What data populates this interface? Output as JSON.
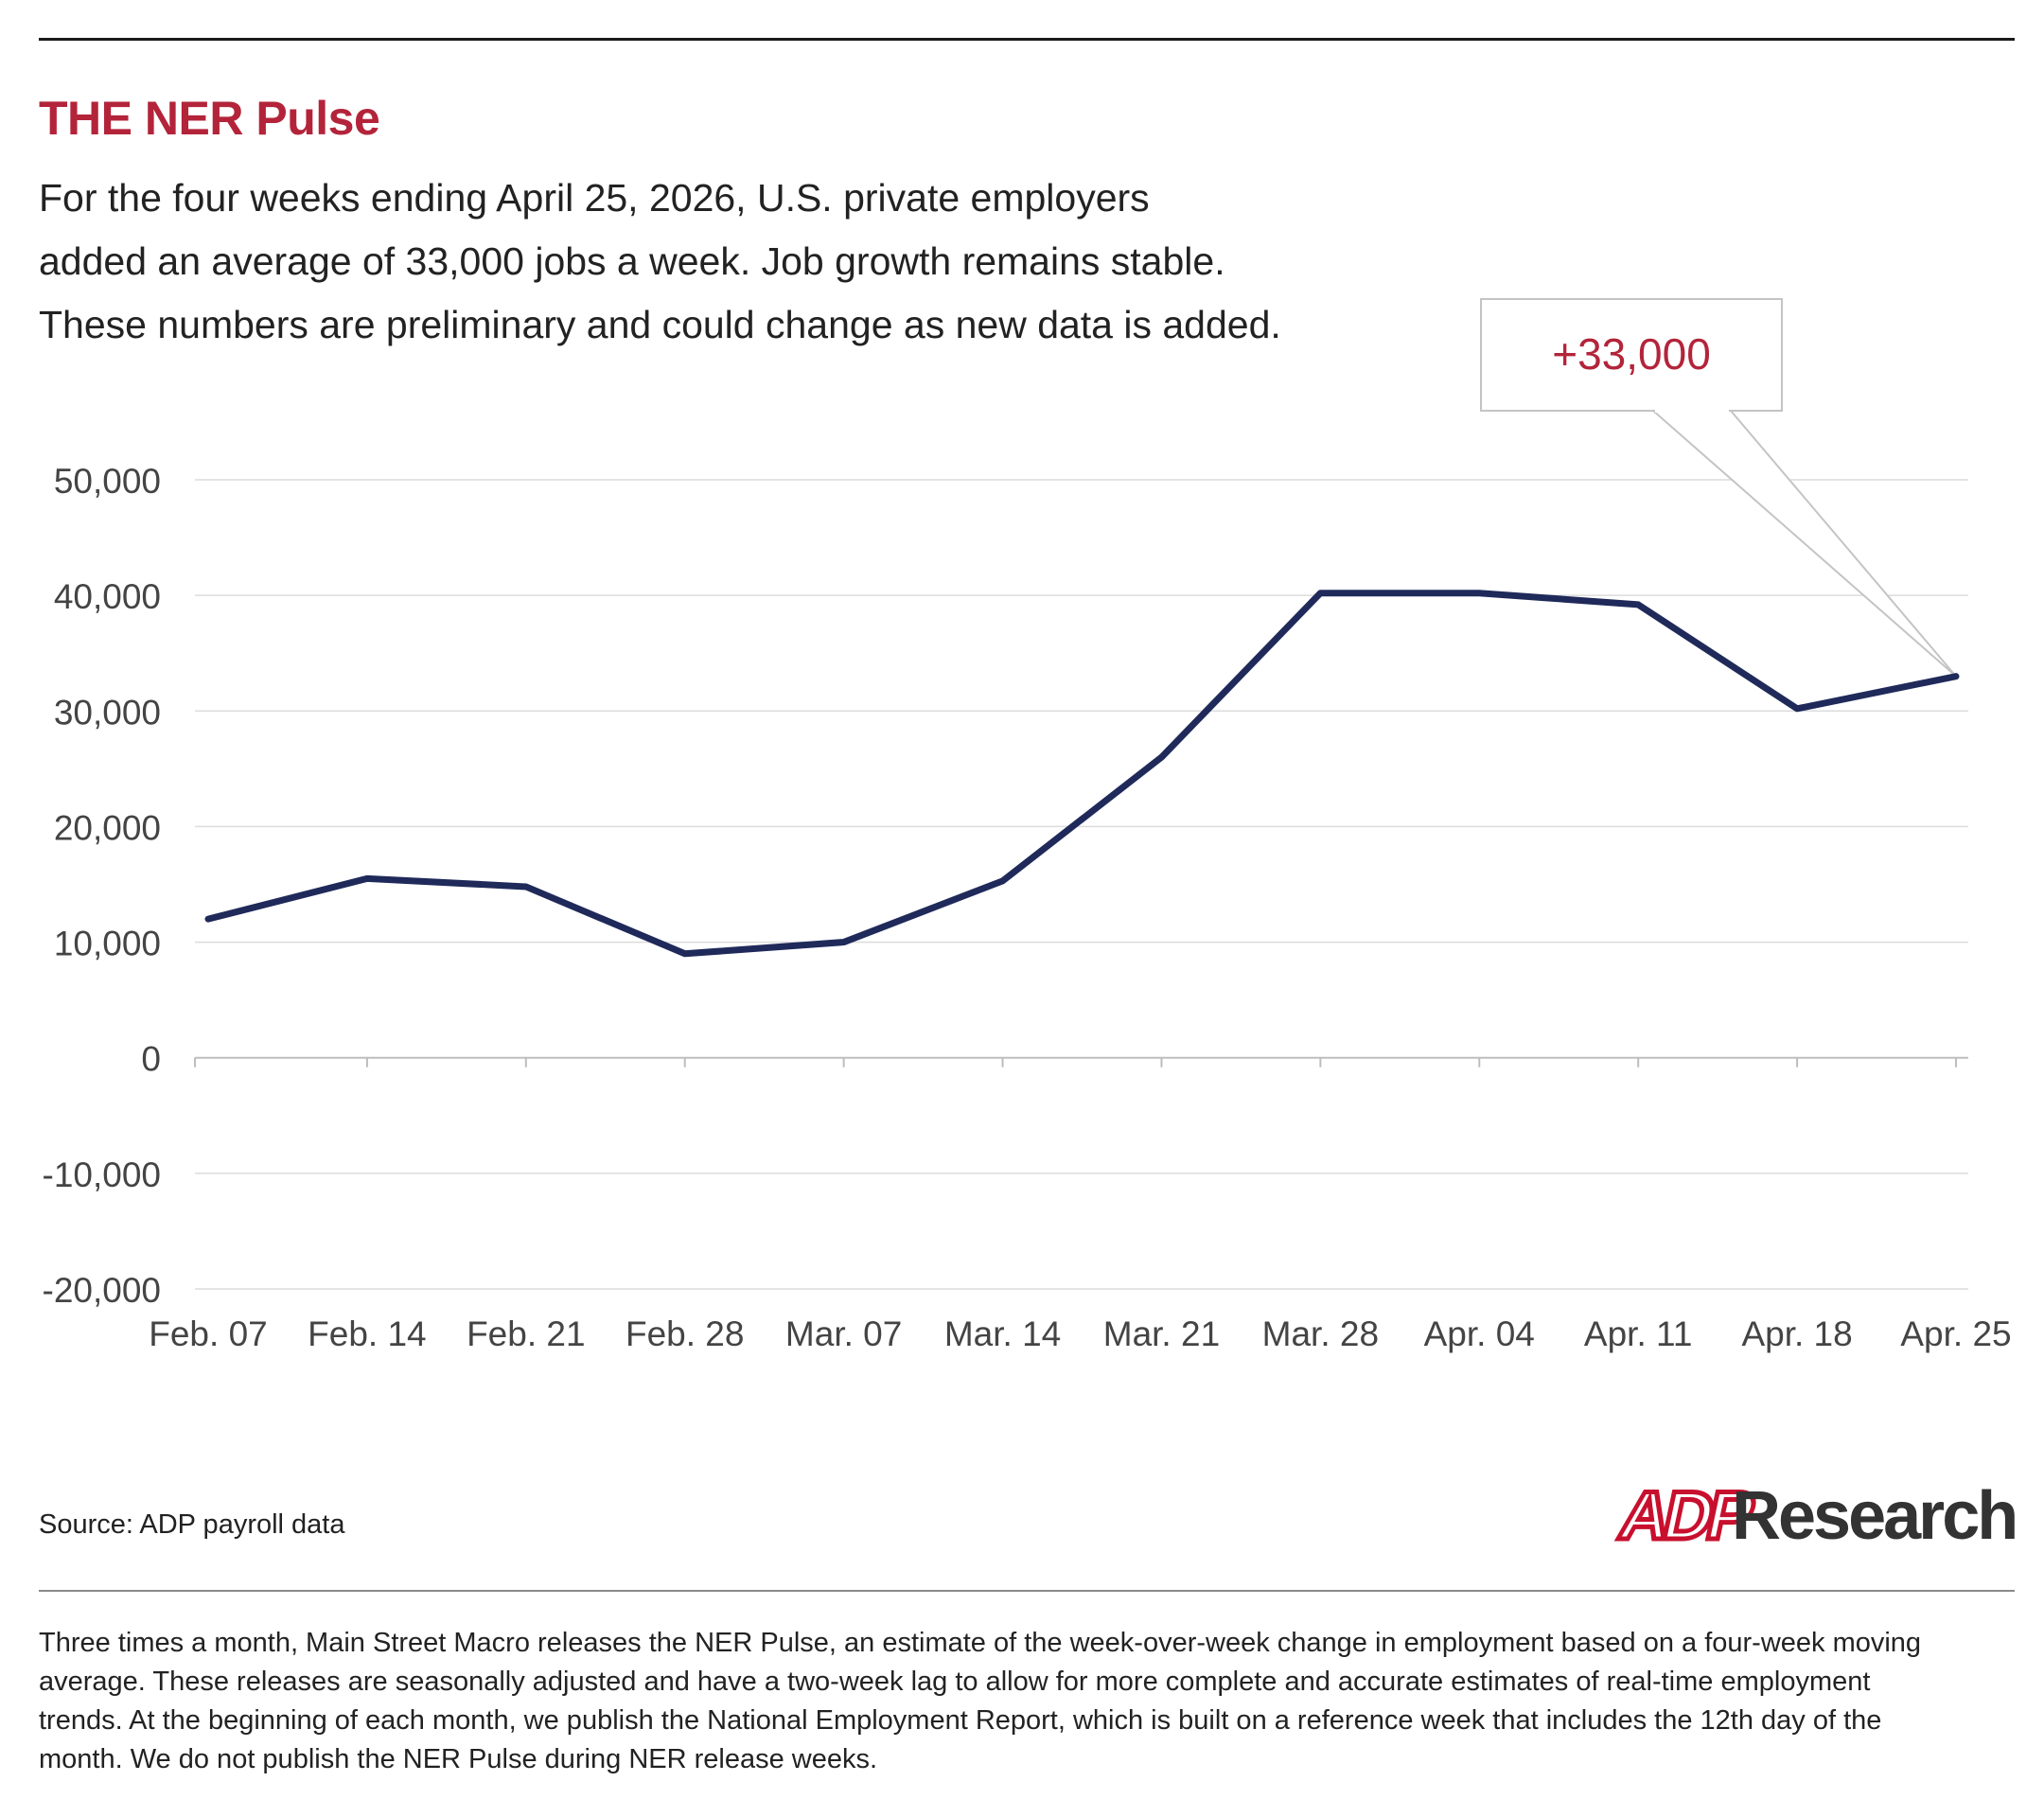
{
  "header": {
    "title": "THE NER Pulse",
    "subtitle_lines": [
      "For the four weeks ending April 25, 2026, U.S. private employers",
      "added an average of 33,000 jobs a week. Job growth remains stable.",
      "These numbers are preliminary and could change as new data is added."
    ]
  },
  "chart_data": {
    "type": "line",
    "categories": [
      "Feb. 07",
      "Feb. 14",
      "Feb. 21",
      "Feb. 28",
      "Mar. 07",
      "Mar. 14",
      "Mar. 21",
      "Mar. 28",
      "Apr. 04",
      "Apr. 11",
      "Apr. 18",
      "Apr. 25"
    ],
    "series": [
      {
        "values": [
          12000,
          15500,
          14800,
          9000,
          10000,
          15300,
          26000,
          40200,
          40200,
          39200,
          30200,
          33000
        ],
        "color": "#1f2a5a"
      }
    ],
    "yticks": [
      50000,
      40000,
      30000,
      20000,
      10000,
      0,
      -10000,
      -20000
    ],
    "ytick_labels": [
      "50,000",
      "40,000",
      "30,000",
      "20,000",
      "10,000",
      "0",
      "-10,000",
      "-20,000"
    ],
    "ylim": [
      -20000,
      50000
    ],
    "grid": true,
    "annotation": {
      "text": "+33,000",
      "category": "Apr. 25",
      "color": "#b3243a"
    }
  },
  "source": "Source: ADP payroll data",
  "logo": {
    "mark": "ADP",
    "word": "Research",
    "mark_color": "#c8102e",
    "word_color": "#333333"
  },
  "footnote_lines": [
    "Three times a month, Main Street Macro releases the NER Pulse, an estimate of the week-over-week change in employment based on a four-week moving",
    "average. These releases are seasonally adjusted and have a two-week lag to allow for more complete and accurate estimates of real-time employment",
    "trends. At the beginning of each month, we publish the National Employment Report, which is built on a reference week that includes the 12th day of the",
    "month. We do not publish the NER Pulse during NER release weeks."
  ]
}
